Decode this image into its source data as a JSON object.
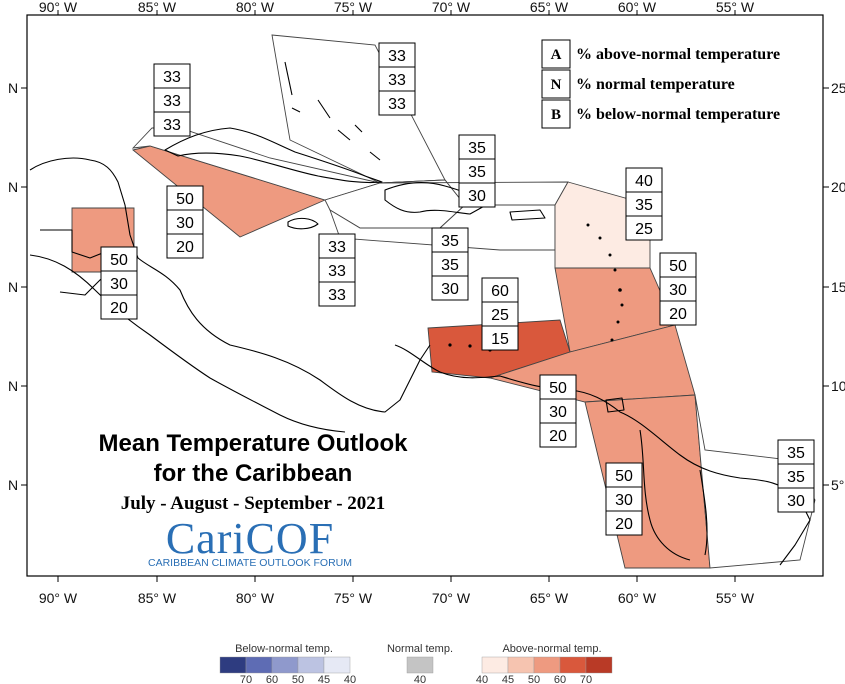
{
  "title": "Mean Temperature Outlook",
  "subtitle": "for the Caribbean",
  "period": "July - August - September - 2021",
  "logo": {
    "name": "CariCOF",
    "tagline": "CARIBBEAN CLIMATE OUTLOOK FORUM"
  },
  "axes": {
    "x_ticks": [
      "90° W",
      "85° W",
      "80° W",
      "75° W",
      "70° W",
      "65° W",
      "60° W",
      "55° W"
    ],
    "y_ticks_left": [
      "N",
      "N",
      "N",
      "N",
      "N"
    ],
    "y_ticks_right": [
      "25",
      "20",
      "15",
      "10",
      "5°"
    ]
  },
  "key": [
    {
      "letter": "A",
      "text": "% above-normal temperature"
    },
    {
      "letter": "N",
      "text": "% normal temperature"
    },
    {
      "letter": "B",
      "text": "% below-normal temperature"
    }
  ],
  "regions": [
    {
      "id": "belize",
      "values": [
        "50",
        "30",
        "20"
      ],
      "color": "#ee9a80"
    },
    {
      "id": "cayman-western-cuba",
      "values": [
        "50",
        "30",
        "20"
      ],
      "color": "#ee9a80"
    },
    {
      "id": "gulf-north-west",
      "values": [
        "33",
        "33",
        "33"
      ],
      "color": "#ffffff"
    },
    {
      "id": "bahamas",
      "values": [
        "33",
        "33",
        "33"
      ],
      "color": "#ffffff"
    },
    {
      "id": "jamaica-haiti",
      "values": [
        "33",
        "33",
        "33"
      ],
      "color": "#ffffff"
    },
    {
      "id": "north-hispaniola",
      "values": [
        "35",
        "35",
        "30"
      ],
      "color": "#ffffff"
    },
    {
      "id": "puerto-rico",
      "values": [
        "35",
        "35",
        "30"
      ],
      "color": "#ffffff"
    },
    {
      "id": "leeward-islands",
      "values": [
        "40",
        "35",
        "25"
      ],
      "color": "#fdebe3"
    },
    {
      "id": "windward-islands",
      "values": [
        "50",
        "30",
        "20"
      ],
      "color": "#ee9a80"
    },
    {
      "id": "abc-islands",
      "values": [
        "60",
        "25",
        "15"
      ],
      "color": "#d9583c"
    },
    {
      "id": "trinidad-venezuela",
      "values": [
        "50",
        "30",
        "20"
      ],
      "color": "#ee9a80"
    },
    {
      "id": "guianas",
      "values": [
        "50",
        "30",
        "20"
      ],
      "color": "#ee9a80"
    },
    {
      "id": "french-guiana",
      "values": [
        "35",
        "35",
        "30"
      ],
      "color": "#ffffff"
    }
  ],
  "scale": {
    "below": {
      "label": "Below-normal temp.",
      "values": [
        "70",
        "60",
        "50",
        "45",
        "40"
      ],
      "colors": [
        "#2e3c80",
        "#5e6cb4",
        "#8f99cc",
        "#bcc3e2",
        "#e6e9f5"
      ]
    },
    "normal": {
      "label": "Normal temp.",
      "values": [
        "40"
      ],
      "colors": [
        "#c4c4c4"
      ]
    },
    "above": {
      "label": "Above-normal temp.",
      "values": [
        "40",
        "45",
        "50",
        "60",
        "70"
      ],
      "colors": [
        "#fdebe3",
        "#f6c4b0",
        "#ee9a80",
        "#d9583c",
        "#b93a26"
      ]
    }
  }
}
